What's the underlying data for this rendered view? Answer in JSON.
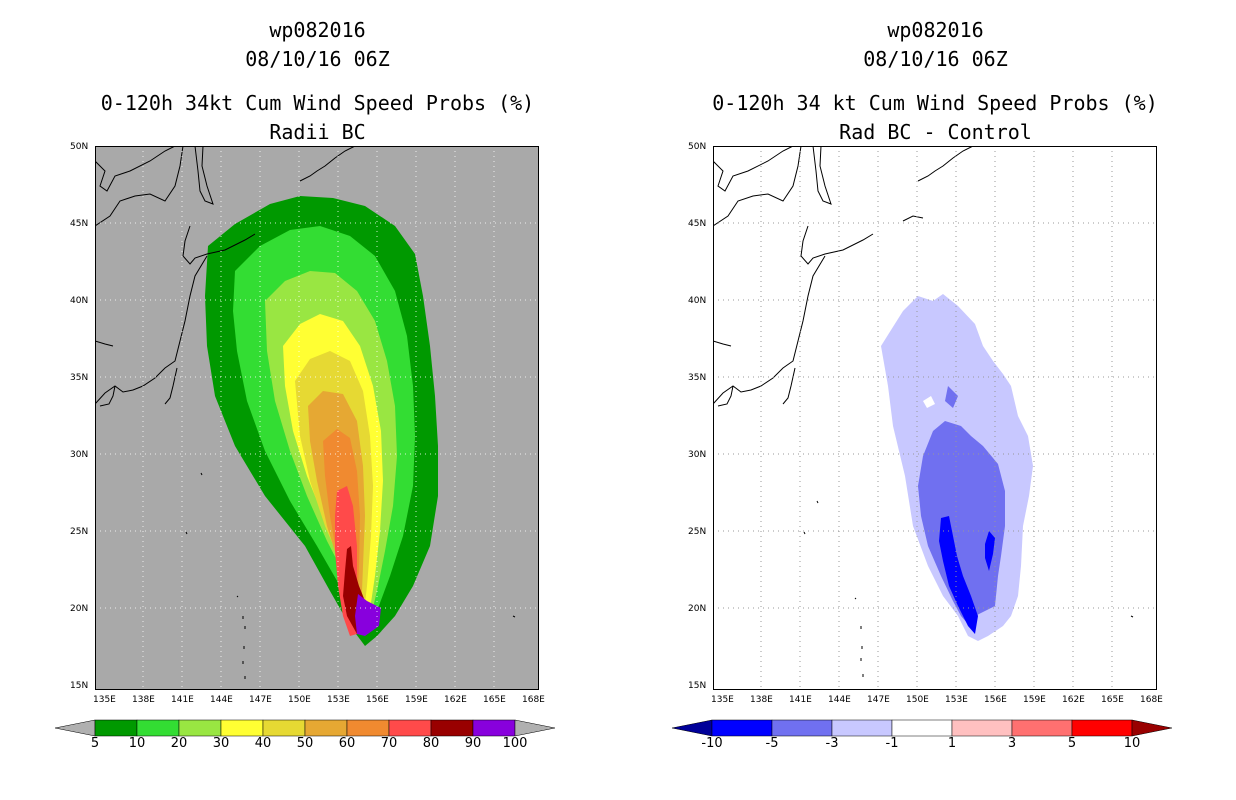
{
  "left": {
    "title_line1": "wp082016",
    "title_line2": "08/10/16 06Z",
    "title_line3": "0-120h 34kt Cum Wind Speed Probs (%)",
    "title_line4": "Radii BC",
    "colorbar_labels": [
      "5",
      "10",
      "20",
      "30",
      "40",
      "50",
      "60",
      "70",
      "80",
      "90",
      "100"
    ],
    "colorbar_colors": [
      "#009900",
      "#33dd33",
      "#99e642",
      "#ffff33",
      "#e6d933",
      "#e6a833",
      "#f08a30",
      "#ff4a4a",
      "#990000",
      "#8800dd"
    ]
  },
  "right": {
    "title_line1": "wp082016",
    "title_line2": "08/10/16 06Z",
    "title_line3": "0-120h 34 kt Cum Wind Speed Probs (%)",
    "title_line4": "Rad BC - Control",
    "colorbar_labels": [
      "-10",
      "-5",
      "-3",
      "-1",
      "1",
      "3",
      "5",
      "10"
    ],
    "colorbar_colors": [
      "#0000ff",
      "#7070f0",
      "#c8c8ff",
      "#ffffff",
      "#ffc0c0",
      "#ff7070",
      "#ff0000"
    ],
    "colorbar_end_low": "#000099",
    "colorbar_end_high": "#990000"
  },
  "axes": {
    "lon_labels": [
      "135E",
      "138E",
      "141E",
      "144E",
      "147E",
      "150E",
      "153E",
      "156E",
      "159E",
      "162E",
      "165E",
      "168E"
    ],
    "lat_labels": [
      "50N",
      "45N",
      "40N",
      "35N",
      "30N",
      "25N",
      "20N",
      "15N"
    ]
  },
  "colors": {
    "land_fill_left": "#a9a9a9",
    "frame": "#000000"
  }
}
